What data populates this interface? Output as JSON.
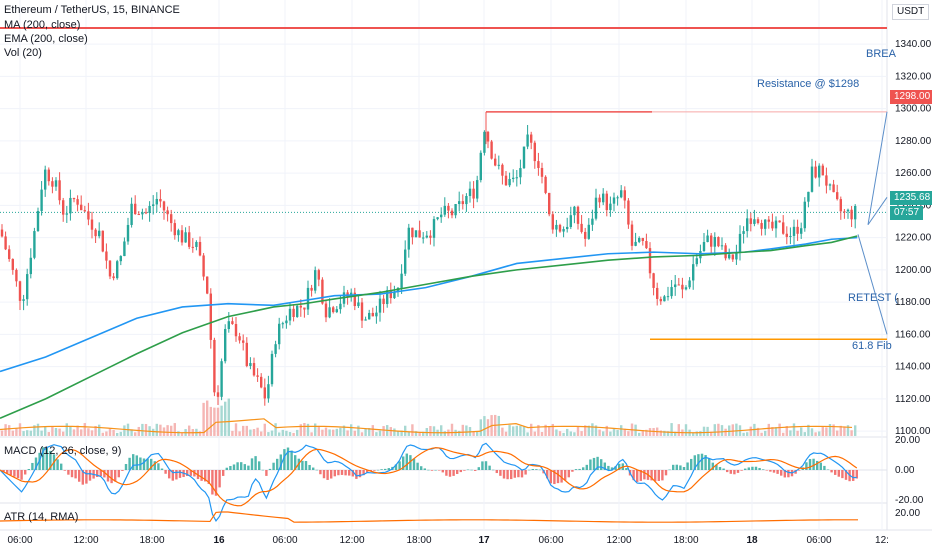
{
  "legend": {
    "symbol": "Ethereum / TetherUS, 15, BINANCE",
    "ma": "MA (200, close)",
    "ema": "EMA (200, close)",
    "vol": "Vol (20)",
    "macd": "MACD (12, 26, close, 9)",
    "atr": "ATR (14, RMA)"
  },
  "currency": "USDT",
  "annotations": {
    "resistance": "Resistance @ $1298",
    "breakout": "BREA",
    "retest": "RETEST (",
    "fib": "61.8 Fib"
  },
  "price_tags": {
    "resistance": "1298.00",
    "last": "1235.68",
    "countdown": "07:57"
  },
  "colors": {
    "up": "#26a69a",
    "down": "#ef5350",
    "ma": "#2196f3",
    "ema": "#2e9e4a",
    "macd": "#2196f3",
    "signal": "#ff6d00",
    "atr": "#ff6d00",
    "resistance": "#ef5350",
    "support": "#ff9800",
    "annotation": "#2962a8"
  },
  "chart_data": {
    "type": "candlestick",
    "y_ticks": [
      "1340.00",
      "1320.00",
      "1300.00",
      "1280.00",
      "1260.00",
      "1240.00",
      "1220.00",
      "1200.00",
      "1180.00",
      "1160.00",
      "1140.00",
      "1120.00",
      "1100.00"
    ],
    "macd_ticks": [
      "20.00",
      "0.00",
      "-20.00"
    ],
    "atr_ticks": [
      "20.00"
    ],
    "x_ticks": [
      "06:00",
      "12:00",
      "18:00",
      "16",
      "06:00",
      "12:00",
      "18:00",
      "17",
      "06:00",
      "12:00",
      "18:00",
      "18",
      "06:00",
      "12:"
    ],
    "ylim": [
      1095,
      1350
    ],
    "levels": {
      "top_red": 1350,
      "resistance": 1298,
      "support": 1157
    },
    "ma_points": [
      [
        0,
        1137
      ],
      [
        30,
        1146
      ],
      [
        60,
        1158
      ],
      [
        90,
        1170
      ],
      [
        120,
        1177
      ],
      [
        150,
        1179
      ],
      [
        180,
        1178
      ],
      [
        200,
        1181
      ],
      [
        220,
        1184
      ],
      [
        250,
        1185
      ],
      [
        280,
        1189
      ],
      [
        310,
        1196
      ],
      [
        340,
        1204
      ],
      [
        370,
        1207
      ],
      [
        400,
        1210
      ],
      [
        430,
        1211
      ],
      [
        460,
        1210
      ],
      [
        490,
        1211
      ],
      [
        507,
        1213
      ],
      [
        530,
        1216
      ],
      [
        547,
        1219
      ],
      [
        564,
        1220
      ]
    ],
    "ema_points": [
      [
        0,
        1108
      ],
      [
        30,
        1120
      ],
      [
        60,
        1134
      ],
      [
        90,
        1148
      ],
      [
        120,
        1161
      ],
      [
        150,
        1171
      ],
      [
        180,
        1177
      ],
      [
        200,
        1179
      ],
      [
        220,
        1182
      ],
      [
        250,
        1186
      ],
      [
        280,
        1191
      ],
      [
        310,
        1196
      ],
      [
        340,
        1200
      ],
      [
        370,
        1203
      ],
      [
        400,
        1206
      ],
      [
        430,
        1208
      ],
      [
        460,
        1209
      ],
      [
        490,
        1211
      ],
      [
        507,
        1212
      ],
      [
        530,
        1215
      ],
      [
        547,
        1217
      ],
      [
        564,
        1221
      ]
    ],
    "close_path": [
      [
        0,
        1225
      ],
      [
        12,
        1200
      ],
      [
        22,
        1180
      ],
      [
        34,
        1222
      ],
      [
        44,
        1262
      ],
      [
        54,
        1255
      ],
      [
        64,
        1235
      ],
      [
        76,
        1245
      ],
      [
        88,
        1232
      ],
      [
        100,
        1222
      ],
      [
        110,
        1196
      ],
      [
        120,
        1205
      ],
      [
        132,
        1240
      ],
      [
        146,
        1235
      ],
      [
        158,
        1245
      ],
      [
        170,
        1230
      ],
      [
        182,
        1220
      ],
      [
        196,
        1215
      ],
      [
        208,
        1185
      ],
      [
        214,
        1125
      ],
      [
        218,
        1125
      ],
      [
        226,
        1165
      ],
      [
        238,
        1162
      ],
      [
        248,
        1140
      ],
      [
        258,
        1130
      ],
      [
        266,
        1120
      ],
      [
        276,
        1160
      ],
      [
        290,
        1175
      ],
      [
        304,
        1178
      ],
      [
        316,
        1200
      ],
      [
        326,
        1175
      ],
      [
        338,
        1180
      ],
      [
        352,
        1185
      ],
      [
        364,
        1170
      ],
      [
        374,
        1172
      ],
      [
        386,
        1183
      ],
      [
        398,
        1190
      ],
      [
        408,
        1225
      ],
      [
        420,
        1222
      ],
      [
        432,
        1225
      ],
      [
        442,
        1235
      ],
      [
        454,
        1235
      ],
      [
        466,
        1245
      ],
      [
        476,
        1250
      ],
      [
        484,
        1290
      ],
      [
        494,
        1268
      ],
      [
        504,
        1255
      ],
      [
        516,
        1255
      ],
      [
        528,
        1280
      ],
      [
        540,
        1265
      ],
      [
        550,
        1230
      ],
      [
        562,
        1225
      ],
      [
        574,
        1235
      ],
      [
        586,
        1218
      ],
      [
        598,
        1248
      ],
      [
        610,
        1238
      ],
      [
        622,
        1248
      ],
      [
        632,
        1215
      ],
      [
        644,
        1215
      ],
      [
        656,
        1185
      ],
      [
        664,
        1182
      ],
      [
        674,
        1192
      ],
      [
        684,
        1185
      ],
      [
        694,
        1205
      ],
      [
        706,
        1218
      ],
      [
        716,
        1218
      ],
      [
        728,
        1205
      ],
      [
        736,
        1210
      ],
      [
        746,
        1232
      ],
      [
        756,
        1235
      ],
      [
        768,
        1225
      ],
      [
        780,
        1226
      ],
      [
        792,
        1222
      ],
      [
        802,
        1230
      ],
      [
        812,
        1260
      ],
      [
        822,
        1262
      ],
      [
        832,
        1245
      ],
      [
        842,
        1235
      ],
      [
        852,
        1235
      ],
      [
        858,
        1236
      ]
    ],
    "vol_baseline": 1097
  }
}
